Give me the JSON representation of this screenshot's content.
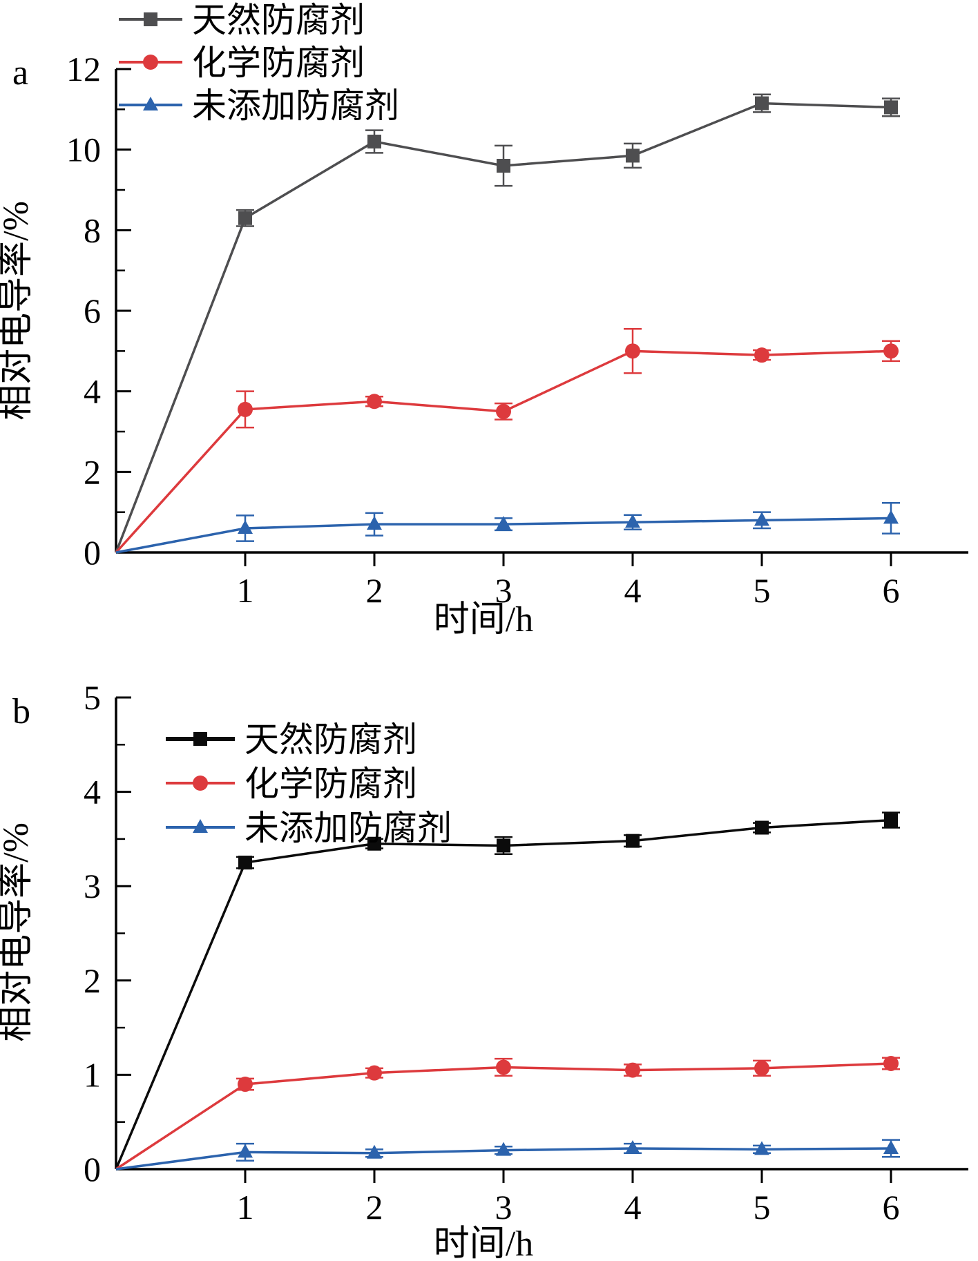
{
  "figure": {
    "panels": [
      "a",
      "b"
    ],
    "axis_color": "#000000",
    "background": "#ffffff"
  },
  "chart_data": [
    {
      "type": "line",
      "panel_label": "a",
      "xlabel": "时间/h",
      "ylabel": "相对电导率/%",
      "x": [
        0,
        1,
        2,
        3,
        4,
        5,
        6
      ],
      "x_ticks": [
        1,
        2,
        3,
        4,
        5,
        6
      ],
      "y_ticks": [
        0,
        2,
        4,
        6,
        8,
        10,
        12
      ],
      "xlim": [
        0,
        6
      ],
      "ylim": [
        0,
        12
      ],
      "y_major": 2,
      "y_minor": 1,
      "grid": "off",
      "legend_position": "top-left",
      "series": [
        {
          "key": "natural-preservative",
          "name": "天然防腐剂",
          "marker": "square",
          "color": "#4e4e50",
          "values": [
            0,
            8.3,
            10.2,
            9.6,
            9.85,
            11.15,
            11.05
          ],
          "errors": [
            0,
            0.2,
            0.28,
            0.5,
            0.3,
            0.22,
            0.22
          ]
        },
        {
          "key": "chemical-preservative",
          "name": "化学防腐剂",
          "marker": "circle",
          "color": "#dd3a3d",
          "values": [
            0,
            3.55,
            3.75,
            3.5,
            5.0,
            4.9,
            5.0
          ],
          "errors": [
            0,
            0.45,
            0.12,
            0.2,
            0.55,
            0.12,
            0.25
          ]
        },
        {
          "key": "no-preservative",
          "name": "未添加防腐剂",
          "marker": "triangle",
          "color": "#2c63ad",
          "values": [
            0,
            0.6,
            0.7,
            0.7,
            0.75,
            0.8,
            0.85
          ],
          "errors": [
            0,
            0.32,
            0.28,
            0.15,
            0.18,
            0.2,
            0.38
          ]
        }
      ]
    },
    {
      "type": "line",
      "panel_label": "b",
      "xlabel": "时间/h",
      "ylabel": "相对电导率/%",
      "x": [
        0,
        1,
        2,
        3,
        4,
        5,
        6
      ],
      "x_ticks": [
        1,
        2,
        3,
        4,
        5,
        6
      ],
      "y_ticks": [
        0,
        1,
        2,
        3,
        4,
        5
      ],
      "xlim": [
        0,
        6
      ],
      "ylim": [
        0,
        5
      ],
      "y_major": 1,
      "y_minor": 0.5,
      "grid": "off",
      "legend_position": "top-left-inside",
      "series": [
        {
          "key": "natural-preservative",
          "name": "天然防腐剂",
          "marker": "square",
          "color": "#0b0b0b",
          "values": [
            0,
            3.25,
            3.45,
            3.43,
            3.48,
            3.62,
            3.7
          ],
          "errors": [
            0,
            0.06,
            0.05,
            0.09,
            0.06,
            0.05,
            0.08
          ]
        },
        {
          "key": "chemical-preservative",
          "name": "化学防腐剂",
          "marker": "circle",
          "color": "#dd3a3d",
          "values": [
            0,
            0.9,
            1.02,
            1.08,
            1.05,
            1.07,
            1.12
          ],
          "errors": [
            0,
            0.06,
            0.05,
            0.09,
            0.06,
            0.08,
            0.06
          ]
        },
        {
          "key": "no-preservative",
          "name": "未添加防腐剂",
          "marker": "triangle",
          "color": "#2c63ad",
          "values": [
            0,
            0.18,
            0.17,
            0.2,
            0.22,
            0.21,
            0.22
          ],
          "errors": [
            0,
            0.09,
            0.04,
            0.04,
            0.05,
            0.04,
            0.09
          ]
        }
      ]
    }
  ]
}
